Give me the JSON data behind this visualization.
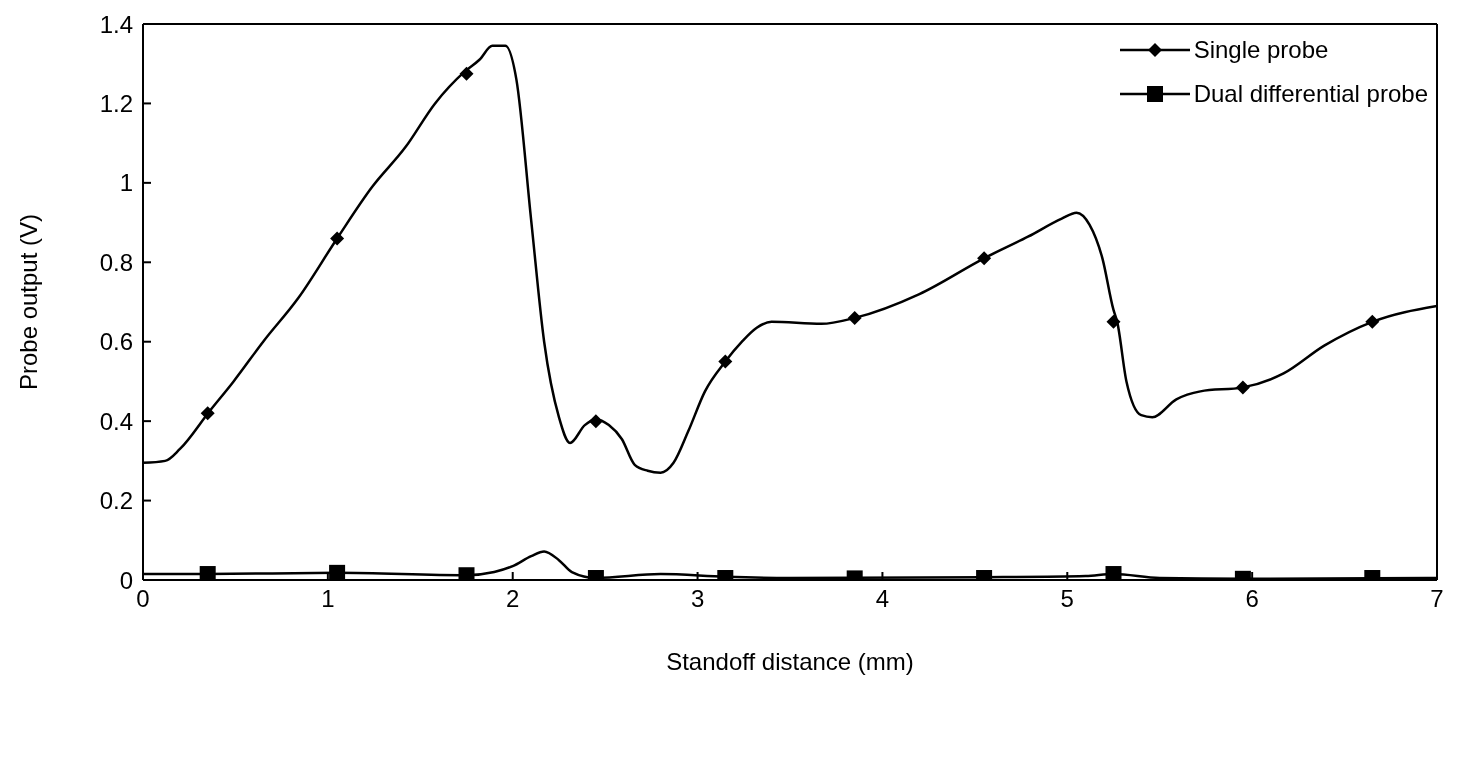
{
  "chart_data": {
    "type": "line",
    "xlabel": "Standoff distance (mm)",
    "ylabel": "Probe output (V)",
    "xlim": [
      0,
      7
    ],
    "xticks": [
      0,
      1,
      2,
      3,
      4,
      5,
      6,
      7
    ],
    "ylim": [
      0,
      1.4
    ],
    "yticks": [
      0,
      0.2,
      0.4,
      0.6,
      0.8,
      1,
      1.2,
      1.4
    ],
    "legend": "top right",
    "series": [
      {
        "color": "#000000",
        "marker": "none",
        "x": [
          0,
          0.12,
          0.2,
          0.36,
          0.49,
          0.65,
          0.84,
          1.05,
          1.24,
          1.42,
          1.58,
          1.74,
          1.82,
          1.89,
          1.96,
          2.02,
          2.1,
          2.17,
          2.25,
          2.31,
          2.39,
          2.45,
          2.52,
          2.59,
          2.66,
          2.73,
          2.8,
          2.87,
          2.95,
          3.04,
          3.15,
          3.24,
          3.32,
          3.4,
          3.67,
          3.85,
          4.2,
          4.55,
          4.79,
          4.97,
          5.05,
          5.12,
          5.19,
          5.25,
          5.27,
          5.32,
          5.4,
          5.46,
          5.59,
          5.72,
          5.95,
          6.17,
          6.39,
          6.65,
          7
        ],
        "values": [
          0.295,
          0.3,
          0.33,
          0.425,
          0.5,
          0.6,
          0.71,
          0.86,
          0.99,
          1.09,
          1.2,
          1.28,
          1.31,
          1.345,
          1.345,
          1.26,
          0.905,
          0.6,
          0.41,
          0.345,
          0.39,
          0.405,
          0.39,
          0.355,
          0.29,
          0.275,
          0.27,
          0.295,
          0.375,
          0.475,
          0.55,
          0.6,
          0.635,
          0.65,
          0.645,
          0.66,
          0.72,
          0.81,
          0.865,
          0.91,
          0.925,
          0.895,
          0.81,
          0.68,
          0.65,
          0.5,
          0.415,
          0.41,
          0.455,
          0.475,
          0.485,
          0.52,
          0.59,
          0.65,
          0.69
        ]
      },
      {
        "name": "Single probe",
        "type": "scatter",
        "color": "#000000",
        "marker": "diamond",
        "x": [
          0.35,
          1.05,
          1.75,
          2.45,
          3.15,
          3.85,
          4.55,
          5.25,
          5.95,
          6.65
        ],
        "values": [
          0.42,
          0.86,
          1.275,
          0.4,
          0.55,
          0.66,
          0.81,
          0.65,
          0.485,
          0.65
        ]
      },
      {
        "color": "#000000",
        "marker": "none",
        "x": [
          0,
          0.35,
          1.05,
          1.75,
          1.9,
          2,
          2.1,
          2.17,
          2.25,
          2.32,
          2.45,
          2.8,
          3.15,
          3.5,
          4.55,
          5.1,
          5.25,
          5.5,
          5.95,
          7
        ],
        "values": [
          0.015,
          0.015,
          0.018,
          0.012,
          0.02,
          0.035,
          0.06,
          0.072,
          0.05,
          0.02,
          0.005,
          0.015,
          0.008,
          0.005,
          0.007,
          0.01,
          0.015,
          0.005,
          0.003,
          0.005
        ]
      },
      {
        "name": "Dual differential probe",
        "type": "scatter",
        "color": "#000000",
        "marker": "square",
        "x": [
          0.35,
          1.05,
          1.75,
          2.45,
          3.15,
          3.85,
          4.55,
          5.25,
          5.95,
          6.65
        ],
        "values": [
          0.015,
          0.018,
          0.012,
          0.005,
          0.005,
          0.004,
          0.005,
          0.015,
          0.003,
          0.005
        ]
      }
    ]
  }
}
